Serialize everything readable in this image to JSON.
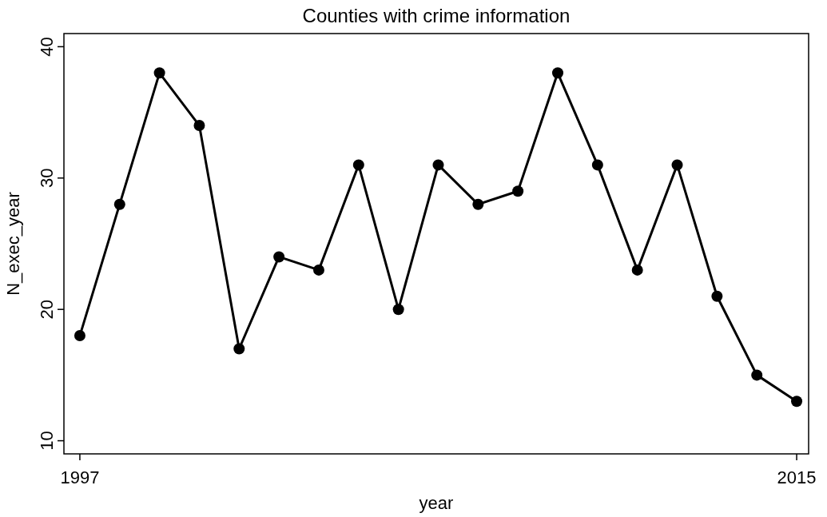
{
  "chart_data": {
    "type": "line",
    "title": "Counties with crime information",
    "xlabel": "year",
    "ylabel": "N_exec_year",
    "x": [
      1997,
      1998,
      1999,
      2000,
      2001,
      2002,
      2003,
      2004,
      2005,
      2006,
      2007,
      2008,
      2009,
      2010,
      2011,
      2012,
      2013,
      2014,
      2015
    ],
    "series": [
      {
        "color": "#000000",
        "values": [
          18,
          28,
          38,
          34,
          17,
          24,
          23,
          31,
          20,
          31,
          28,
          29,
          38,
          31,
          23,
          31,
          21,
          15,
          13
        ]
      }
    ],
    "xlim": [
      1996.6,
      2015.3
    ],
    "xticks": [
      1997,
      2015
    ],
    "ylim": [
      9,
      41
    ],
    "yticks": [
      10,
      20,
      30,
      40
    ],
    "grid": false,
    "marker": "circle",
    "line_style": "solid"
  }
}
